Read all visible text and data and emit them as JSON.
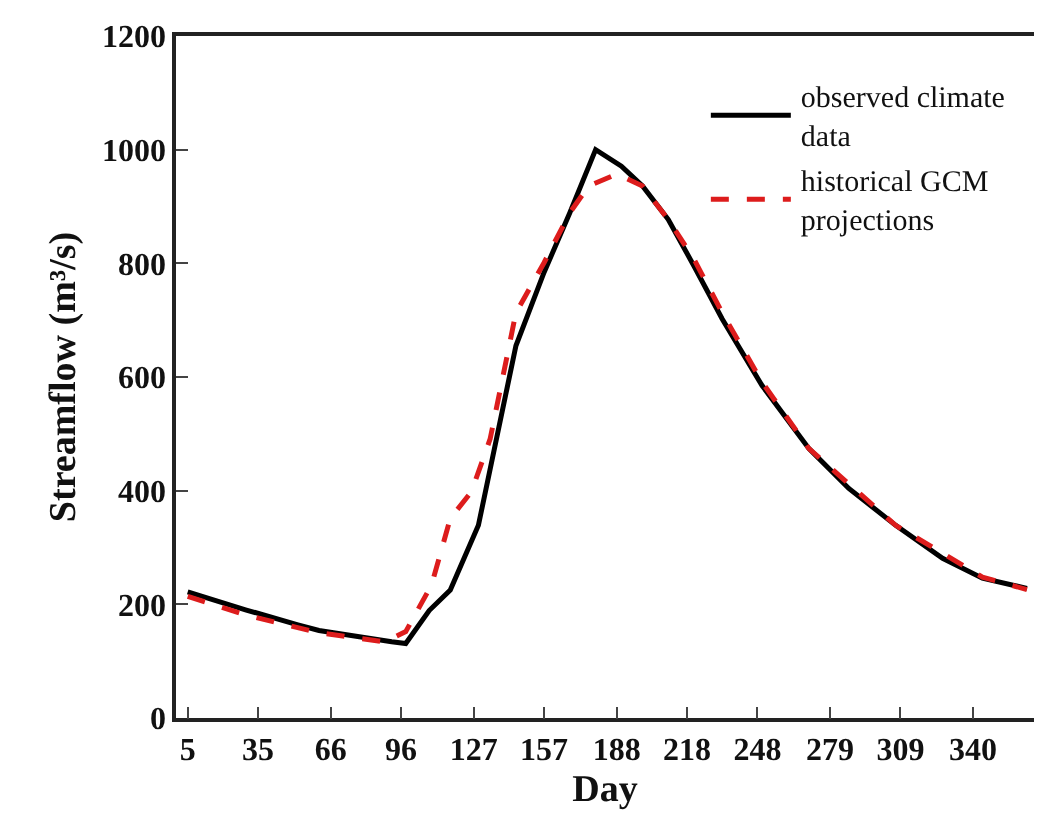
{
  "chart_data": {
    "type": "line",
    "xlabel": "Day",
    "ylabel": "Streamflow (m³/s)",
    "xlim": [
      0,
      366
    ],
    "xticks": [
      5,
      35,
      66,
      96,
      127,
      157,
      188,
      218,
      248,
      279,
      309,
      340
    ],
    "ylim": [
      0,
      1200
    ],
    "yticks": [
      0,
      200,
      400,
      600,
      800,
      1000,
      1200
    ],
    "legend": "top right",
    "series": [
      {
        "name": "observed climate data",
        "color": "#000000",
        "line_style": "solid",
        "x": [
          5,
          30,
          52,
          61,
          92,
          98,
          108,
          117,
          129,
          145,
          157,
          168,
          179,
          190,
          199,
          210,
          221,
          233,
          250,
          270,
          287,
          307,
          327,
          344,
          363
        ],
        "values": [
          222,
          190,
          164,
          154,
          134,
          131,
          189,
          225,
          339,
          655,
          784,
          889,
          1000,
          971,
          936,
          877,
          795,
          702,
          585,
          474,
          404,
          339,
          281,
          246,
          228
        ]
      },
      {
        "name": "historical GCM projections",
        "color": "#dd1c1c",
        "line_style": "dashed",
        "x": [
          5,
          30,
          61,
          89,
          98,
          109,
          117,
          126,
          134,
          145,
          157,
          168,
          176,
          188,
          199,
          210,
          221,
          233,
          250,
          270,
          307,
          344,
          363
        ],
        "values": [
          214,
          181,
          150,
          134,
          152,
          234,
          351,
          398,
          491,
          713,
          801,
          889,
          936,
          957,
          936,
          877,
          807,
          713,
          591,
          474,
          339,
          248,
          226
        ]
      }
    ]
  }
}
